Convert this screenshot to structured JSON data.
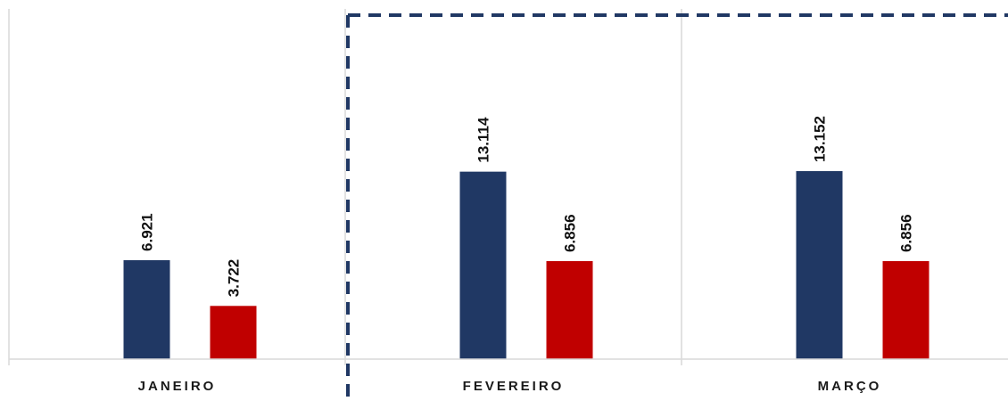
{
  "chart_data": {
    "type": "bar",
    "categories": [
      "JANEIRO",
      "FEVEREIRO",
      "MARÇO"
    ],
    "series": [
      {
        "values": [
          6.921,
          13.114,
          13.152
        ],
        "labels": [
          "6.921",
          "13.114",
          "13.152"
        ],
        "color": "#203864"
      },
      {
        "values": [
          3.722,
          6.856,
          6.856
        ],
        "labels": [
          "3.722",
          "6.856",
          "6.856"
        ],
        "color": "#c00000"
      }
    ],
    "ylim": [
      0,
      24.5
    ],
    "grid": "vertical category separators",
    "highlight": {
      "categories": [
        "FEVEREIRO",
        "MARÇO"
      ],
      "style": "dashed",
      "color": "#203864"
    }
  }
}
